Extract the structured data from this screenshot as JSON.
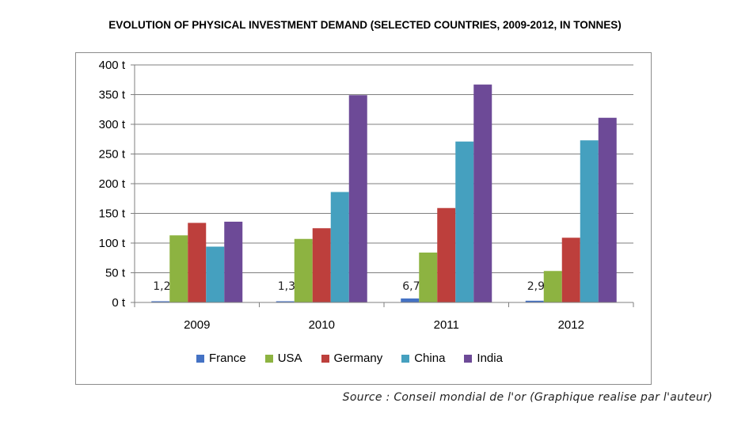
{
  "title": "EVOLUTION OF PHYSICAL INVESTMENT DEMAND (SELECTED COUNTRIES, 2009-2012, IN TONNES)",
  "source": "Source : Conseil mondial de l'or (Graphique realise par l'auteur)",
  "chart_data": {
    "type": "bar",
    "title": "EVOLUTION OF PHYSICAL INVESTMENT DEMAND (SELECTED COUNTRIES, 2009-2012, IN TONNES)",
    "categories": [
      "2009",
      "2010",
      "2011",
      "2012"
    ],
    "xlabel": "",
    "ylabel": "",
    "ylim": [
      0,
      400
    ],
    "yticks": [
      0,
      50,
      100,
      150,
      200,
      250,
      300,
      350,
      400
    ],
    "ytick_labels": [
      "0 t",
      "50 t",
      "100 t",
      "150 t",
      "200 t",
      "250 t",
      "300 t",
      "350 t",
      "400 t"
    ],
    "grid": true,
    "legend_position": "bottom",
    "series": [
      {
        "name": "France",
        "color": "#4472c4",
        "values": [
          1.2,
          1.3,
          6.7,
          2.9
        ],
        "labels": [
          "1,2",
          "1,3",
          "6,7",
          "2,9"
        ]
      },
      {
        "name": "USA",
        "color": "#8db341",
        "values": [
          113,
          107,
          84,
          53
        ]
      },
      {
        "name": "Germany",
        "color": "#bd3f3c",
        "values": [
          134,
          125,
          159,
          109
        ]
      },
      {
        "name": "China",
        "color": "#45a0bf",
        "values": [
          94,
          186,
          271,
          273
        ]
      },
      {
        "name": "India",
        "color": "#6d4a97",
        "values": [
          136,
          349,
          367,
          311
        ]
      }
    ]
  }
}
